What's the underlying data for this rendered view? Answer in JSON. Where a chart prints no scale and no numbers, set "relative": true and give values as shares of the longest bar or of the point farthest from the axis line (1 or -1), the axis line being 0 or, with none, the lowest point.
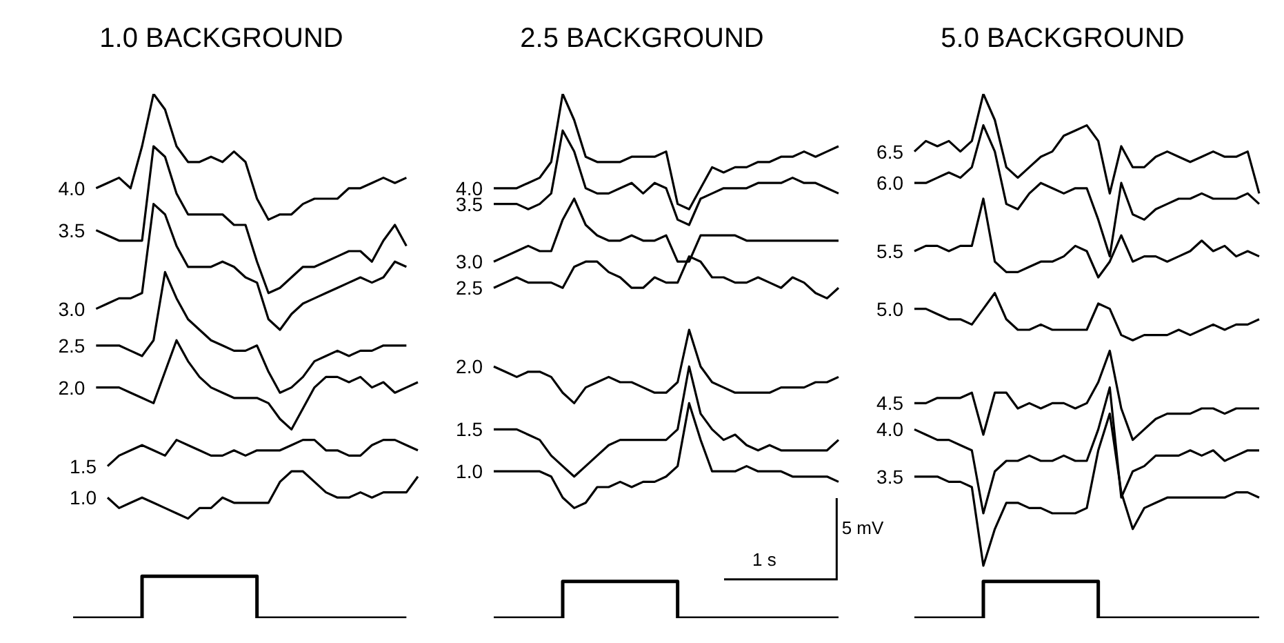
{
  "chart_data": [
    {
      "type": "line",
      "title": "1.0 BACKGROUND",
      "relative": true,
      "tick_labels": false,
      "marker": "none",
      "categories": [
        null,
        null,
        null,
        null,
        null,
        null,
        null,
        null,
        null,
        null,
        null,
        null,
        null,
        null,
        null,
        null,
        null,
        null,
        null,
        null,
        null,
        null,
        null,
        null,
        null,
        null,
        null,
        null,
        null,
        null,
        null
      ],
      "series": [
        {
          "name": "4.0",
          "color": "#000000",
          "values": [
            null,
            null,
            0.82,
            0.83,
            0.84,
            0.82,
            0.9,
            1.0,
            0.97,
            0.9,
            0.87,
            0.87,
            0.88,
            0.87,
            0.89,
            0.87,
            0.8,
            0.76,
            0.77,
            0.77,
            0.79,
            0.8,
            0.8,
            0.8,
            0.82,
            0.82,
            0.83,
            0.84,
            0.83,
            0.84,
            null
          ]
        },
        {
          "name": "3.5",
          "color": "#000000",
          "values": [
            null,
            null,
            0.74,
            0.73,
            0.72,
            0.72,
            0.72,
            0.9,
            0.88,
            0.81,
            0.77,
            0.77,
            0.77,
            0.77,
            0.75,
            0.75,
            0.68,
            0.62,
            0.63,
            0.65,
            0.67,
            0.67,
            0.68,
            0.69,
            0.7,
            0.7,
            0.68,
            0.72,
            0.75,
            0.71,
            null
          ]
        },
        {
          "name": "3.0",
          "color": "#000000",
          "values": [
            null,
            null,
            0.59,
            0.6,
            0.61,
            0.61,
            0.62,
            0.79,
            0.77,
            0.71,
            0.67,
            0.67,
            0.67,
            0.68,
            0.67,
            0.65,
            0.64,
            0.57,
            0.55,
            0.58,
            0.6,
            0.61,
            0.62,
            0.63,
            0.64,
            0.65,
            0.64,
            0.65,
            0.68,
            0.67,
            null
          ]
        },
        {
          "name": "2.5",
          "color": "#000000",
          "values": [
            null,
            null,
            0.52,
            0.52,
            0.52,
            0.51,
            0.5,
            0.53,
            0.66,
            0.61,
            0.57,
            0.55,
            0.53,
            0.52,
            0.51,
            0.51,
            0.52,
            0.47,
            0.43,
            0.44,
            0.46,
            0.49,
            0.5,
            0.51,
            0.5,
            0.51,
            0.51,
            0.52,
            0.52,
            0.52,
            null
          ]
        },
        {
          "name": "2.0",
          "color": "#000000",
          "values": [
            null,
            null,
            0.44,
            0.44,
            0.44,
            0.43,
            0.42,
            0.41,
            0.47,
            0.53,
            0.49,
            0.46,
            0.44,
            0.43,
            0.42,
            0.42,
            0.42,
            0.41,
            0.38,
            0.36,
            0.4,
            0.44,
            0.46,
            0.46,
            0.45,
            0.46,
            0.44,
            0.45,
            0.43,
            0.44,
            0.45
          ]
        },
        {
          "name": "1.5",
          "color": "#000000",
          "values": [
            null,
            null,
            null,
            0.29,
            0.31,
            0.32,
            0.33,
            0.32,
            0.31,
            0.34,
            0.33,
            0.32,
            0.31,
            0.31,
            0.32,
            0.31,
            0.32,
            0.32,
            0.32,
            0.33,
            0.34,
            0.34,
            0.32,
            0.32,
            0.31,
            0.31,
            0.33,
            0.34,
            0.34,
            0.33,
            0.32
          ]
        },
        {
          "name": "1.0",
          "color": "#000000",
          "values": [
            null,
            null,
            null,
            0.23,
            0.21,
            0.22,
            0.23,
            0.22,
            0.21,
            0.2,
            0.19,
            0.21,
            0.21,
            0.23,
            0.22,
            0.22,
            0.22,
            0.22,
            0.26,
            0.28,
            0.28,
            0.26,
            0.24,
            0.23,
            0.23,
            0.24,
            0.23,
            0.24,
            0.24,
            0.24,
            0.27
          ]
        },
        {
          "type": "step",
          "color": "#000000",
          "values": [
            0,
            0,
            0,
            0,
            0,
            0,
            0.08,
            0.08,
            0.08,
            0.08,
            0.08,
            0.08,
            0.08,
            0.08,
            0.08,
            0.08,
            0,
            0,
            0,
            0,
            0,
            0,
            0,
            0,
            0,
            0,
            0,
            0,
            0,
            0,
            null
          ]
        }
      ]
    },
    {
      "type": "line",
      "title": "2.5 BACKGROUND",
      "relative": true,
      "tick_labels": false,
      "marker": "none",
      "annotations": [
        "1 s",
        "5 mV"
      ],
      "categories": [
        null,
        null,
        null,
        null,
        null,
        null,
        null,
        null,
        null,
        null,
        null,
        null,
        null,
        null,
        null,
        null,
        null,
        null,
        null,
        null,
        null,
        null,
        null,
        null,
        null,
        null,
        null,
        null,
        null,
        null,
        null
      ],
      "series": [
        {
          "name": "4.0",
          "color": "#000000",
          "values": [
            0.82,
            0.82,
            0.82,
            0.83,
            0.84,
            0.87,
            1.0,
            0.95,
            0.88,
            0.87,
            0.87,
            0.87,
            0.88,
            0.88,
            0.88,
            0.89,
            0.79,
            0.78,
            0.82,
            0.86,
            0.85,
            0.86,
            0.86,
            0.87,
            0.87,
            0.88,
            0.88,
            0.89,
            0.88,
            0.89,
            0.9
          ]
        },
        {
          "name": "3.5",
          "color": "#000000",
          "values": [
            0.79,
            0.79,
            0.79,
            0.78,
            0.79,
            0.81,
            0.93,
            0.89,
            0.82,
            0.81,
            0.81,
            0.82,
            0.83,
            0.81,
            0.83,
            0.82,
            0.76,
            0.75,
            0.8,
            0.81,
            0.82,
            0.82,
            0.82,
            0.83,
            0.83,
            0.83,
            0.84,
            0.83,
            0.83,
            0.82,
            0.81
          ]
        },
        {
          "name": "3.0",
          "color": "#000000",
          "values": [
            0.68,
            0.69,
            0.7,
            0.71,
            0.7,
            0.7,
            0.76,
            0.8,
            0.75,
            0.73,
            0.72,
            0.72,
            0.73,
            0.72,
            0.72,
            0.73,
            0.68,
            0.68,
            0.73,
            0.73,
            0.73,
            0.73,
            0.72,
            0.72,
            0.72,
            0.72,
            0.72,
            0.72,
            0.72,
            0.72,
            0.72
          ]
        },
        {
          "name": "2.5",
          "color": "#000000",
          "values": [
            0.63,
            0.64,
            0.65,
            0.64,
            0.64,
            0.64,
            0.63,
            0.67,
            0.68,
            0.68,
            0.66,
            0.65,
            0.63,
            0.63,
            0.65,
            0.64,
            0.64,
            0.69,
            0.68,
            0.65,
            0.65,
            0.64,
            0.64,
            0.65,
            0.64,
            0.63,
            0.65,
            0.64,
            0.62,
            0.61,
            0.63
          ]
        },
        {
          "name": "2.0",
          "color": "#000000",
          "values": [
            0.48,
            0.47,
            0.46,
            0.47,
            0.47,
            0.46,
            0.43,
            0.41,
            0.44,
            0.45,
            0.46,
            0.45,
            0.45,
            0.44,
            0.43,
            0.43,
            0.45,
            0.55,
            0.48,
            0.45,
            0.44,
            0.43,
            0.43,
            0.43,
            0.43,
            0.44,
            0.44,
            0.44,
            0.45,
            0.45,
            0.46
          ]
        },
        {
          "name": "1.5",
          "color": "#000000",
          "values": [
            0.36,
            0.36,
            0.36,
            0.35,
            0.34,
            0.31,
            0.29,
            0.27,
            0.29,
            0.31,
            0.33,
            0.34,
            0.34,
            0.34,
            0.34,
            0.34,
            0.36,
            0.48,
            0.39,
            0.36,
            0.34,
            0.35,
            0.33,
            0.32,
            0.33,
            0.32,
            0.32,
            0.32,
            0.32,
            0.32,
            0.34
          ]
        },
        {
          "name": "1.0",
          "color": "#000000",
          "values": [
            0.28,
            0.28,
            0.28,
            0.28,
            0.28,
            0.27,
            0.23,
            0.21,
            0.22,
            0.25,
            0.25,
            0.26,
            0.25,
            0.26,
            0.26,
            0.27,
            0.29,
            0.41,
            0.34,
            0.28,
            0.28,
            0.28,
            0.29,
            0.28,
            0.28,
            0.28,
            0.27,
            0.27,
            0.27,
            0.27,
            0.26
          ]
        },
        {
          "type": "step",
          "color": "#000000",
          "values": [
            0,
            0,
            0,
            0,
            0,
            0,
            0.07,
            0.07,
            0.07,
            0.07,
            0.07,
            0.07,
            0.07,
            0.07,
            0.07,
            0.07,
            0,
            0,
            0,
            0,
            0,
            0,
            0,
            0,
            0,
            0,
            0,
            0,
            0,
            0,
            0
          ]
        }
      ]
    },
    {
      "type": "line",
      "title": "5.0 BACKGROUND",
      "relative": true,
      "tick_labels": false,
      "marker": "none",
      "categories": [
        null,
        null,
        null,
        null,
        null,
        null,
        null,
        null,
        null,
        null,
        null,
        null,
        null,
        null,
        null,
        null,
        null,
        null,
        null,
        null,
        null,
        null,
        null,
        null,
        null,
        null,
        null,
        null,
        null,
        null,
        null
      ],
      "series": [
        {
          "name": "6.5",
          "color": "#000000",
          "values": [
            0.89,
            0.91,
            0.9,
            0.91,
            0.89,
            0.91,
            1.0,
            0.95,
            0.86,
            0.84,
            0.86,
            0.88,
            0.89,
            0.92,
            0.93,
            0.94,
            0.91,
            0.81,
            0.9,
            0.86,
            0.86,
            0.88,
            0.89,
            0.88,
            0.87,
            0.88,
            0.89,
            0.88,
            0.88,
            0.89,
            0.81
          ]
        },
        {
          "name": "6.0",
          "color": "#000000",
          "values": [
            0.83,
            0.83,
            0.84,
            0.85,
            0.84,
            0.86,
            0.94,
            0.89,
            0.79,
            0.78,
            0.81,
            0.83,
            0.82,
            0.81,
            0.82,
            0.82,
            0.76,
            0.69,
            0.83,
            0.77,
            0.76,
            0.78,
            0.79,
            0.8,
            0.8,
            0.81,
            0.8,
            0.8,
            0.8,
            0.81,
            0.79
          ]
        },
        {
          "name": "5.5",
          "color": "#000000",
          "values": [
            0.7,
            0.71,
            0.71,
            0.7,
            0.71,
            0.71,
            0.8,
            0.68,
            0.66,
            0.66,
            0.67,
            0.68,
            0.68,
            0.69,
            0.71,
            0.7,
            0.65,
            0.68,
            0.73,
            0.68,
            0.69,
            0.69,
            0.68,
            0.69,
            0.7,
            0.72,
            0.7,
            0.71,
            0.69,
            0.7,
            0.69
          ]
        },
        {
          "name": "5.0",
          "color": "#000000",
          "values": [
            0.59,
            0.59,
            0.58,
            0.57,
            0.57,
            0.56,
            0.59,
            0.62,
            0.57,
            0.55,
            0.55,
            0.56,
            0.55,
            0.55,
            0.55,
            0.55,
            0.6,
            0.59,
            0.54,
            0.53,
            0.54,
            0.54,
            0.54,
            0.55,
            0.54,
            0.55,
            0.56,
            0.55,
            0.56,
            0.56,
            0.57
          ]
        },
        {
          "name": "4.5",
          "color": "#000000",
          "values": [
            0.41,
            0.41,
            0.42,
            0.42,
            0.42,
            0.43,
            0.35,
            0.43,
            0.43,
            0.4,
            0.41,
            0.4,
            0.41,
            0.41,
            0.4,
            0.41,
            0.45,
            0.51,
            0.4,
            0.34,
            0.36,
            0.38,
            0.39,
            0.39,
            0.39,
            0.4,
            0.4,
            0.39,
            0.4,
            0.4,
            0.4
          ]
        },
        {
          "name": "4.0",
          "color": "#000000",
          "values": [
            0.36,
            0.35,
            0.34,
            0.34,
            0.33,
            0.32,
            0.2,
            0.28,
            0.3,
            0.3,
            0.31,
            0.3,
            0.3,
            0.31,
            0.3,
            0.3,
            0.36,
            0.44,
            0.23,
            0.28,
            0.29,
            0.31,
            0.31,
            0.31,
            0.32,
            0.31,
            0.32,
            0.3,
            0.31,
            0.32,
            0.32
          ]
        },
        {
          "name": "3.5",
          "color": "#000000",
          "values": [
            0.27,
            0.27,
            0.27,
            0.26,
            0.26,
            0.25,
            0.1,
            0.17,
            0.22,
            0.22,
            0.21,
            0.21,
            0.2,
            0.2,
            0.2,
            0.21,
            0.32,
            0.39,
            0.24,
            0.17,
            0.21,
            0.22,
            0.23,
            0.23,
            0.23,
            0.23,
            0.23,
            0.23,
            0.24,
            0.24,
            0.23
          ]
        },
        {
          "type": "step",
          "color": "#000000",
          "values": [
            0,
            0,
            0,
            0,
            0,
            0,
            0.07,
            0.07,
            0.07,
            0.07,
            0.07,
            0.07,
            0.07,
            0.07,
            0.07,
            0.07,
            0,
            0,
            0,
            0,
            0,
            0,
            0,
            0,
            0,
            0,
            0,
            0,
            0,
            0,
            0
          ]
        }
      ]
    }
  ]
}
